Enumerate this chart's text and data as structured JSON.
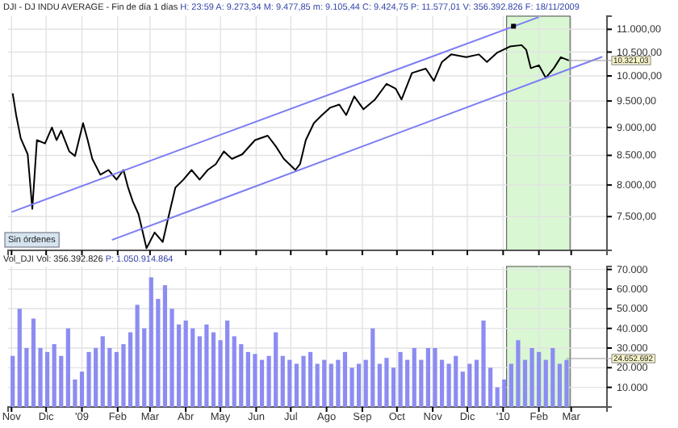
{
  "chart_data": [
    {
      "type": "line",
      "title": "DJI - DJ INDU AVERAGE - Fin de día 1 días",
      "subtitle": "H: 23:59 A: 9.273,34 M: 9.477,85 m: 9.105,44 C: 9.424,75 P: 11.577,01 V: 356.392.826 F: 18/11/2009",
      "log": true,
      "grid": true,
      "tick_labels": "y",
      "xlim": [
        "2008-10-29",
        "2010-04-01"
      ],
      "xticks": [
        {
          "value": "2008-11-01",
          "label": null
        },
        {
          "value": "2008-12-01",
          "label": null
        },
        {
          "value": "2009-01-01",
          "label": null
        },
        {
          "value": "2009-02-01",
          "label": null
        },
        {
          "value": "2009-03-01",
          "label": null
        },
        {
          "value": "2009-04-01",
          "label": null
        },
        {
          "value": "2009-05-01",
          "label": null
        },
        {
          "value": "2009-06-01",
          "label": null
        },
        {
          "value": "2009-07-01",
          "label": null
        },
        {
          "value": "2009-08-01",
          "label": null
        },
        {
          "value": "2009-09-01",
          "label": null
        },
        {
          "value": "2009-10-01",
          "label": null
        },
        {
          "value": "2009-11-01",
          "label": null
        },
        {
          "value": "2009-12-01",
          "label": null
        },
        {
          "value": "2010-01-01",
          "label": null
        },
        {
          "value": "2010-02-01",
          "label": null
        },
        {
          "value": "2010-03-01",
          "label": null
        }
      ],
      "ylim": [
        7000,
        11300
      ],
      "yticks": [
        {
          "value": 7500,
          "label": "7.500,00"
        },
        {
          "value": 8000,
          "label": "8.000,00"
        },
        {
          "value": 8500,
          "label": "8.500,00"
        },
        {
          "value": 9000,
          "label": "9.000,00"
        },
        {
          "value": 9500,
          "label": "9.500,00"
        },
        {
          "value": 10000,
          "label": "10.000,00"
        },
        {
          "value": 10500,
          "label": "10.500,00"
        },
        {
          "value": 11000,
          "label": "11.000,00"
        }
      ],
      "bands": [
        {
          "axis": "x",
          "from": "2010-01-04",
          "to": "2010-02-28",
          "color": "#d9f7d3"
        }
      ],
      "annotations": [
        {
          "text": "10.321,03",
          "x": "2010-02-27",
          "y": 10320
        },
        "Sin órdenes"
      ],
      "series": [
        {
          "type": "line",
          "color": "#000000",
          "x": [
            "2008-11-02",
            "2008-11-05",
            "2008-11-09",
            "2008-11-15",
            "2008-11-19",
            "2008-11-23",
            "2008-11-30",
            "2008-12-06",
            "2008-12-10",
            "2008-12-14",
            "2008-12-21",
            "2008-12-26",
            "2009-01-02",
            "2009-01-06",
            "2009-01-10",
            "2009-01-17",
            "2009-01-24",
            "2009-01-31",
            "2009-02-06",
            "2009-02-10",
            "2009-02-14",
            "2009-02-19",
            "2009-02-26",
            "2009-03-05",
            "2009-03-12",
            "2009-03-16",
            "2009-03-23",
            "2009-03-30",
            "2009-04-06",
            "2009-04-13",
            "2009-04-20",
            "2009-04-27",
            "2009-05-04",
            "2009-05-11",
            "2009-05-20",
            "2009-05-31",
            "2009-06-11",
            "2009-06-18",
            "2009-06-25",
            "2009-07-05",
            "2009-07-09",
            "2009-07-14",
            "2009-07-21",
            "2009-07-28",
            "2009-08-04",
            "2009-08-12",
            "2009-08-18",
            "2009-08-25",
            "2009-09-02",
            "2009-09-12",
            "2009-09-22",
            "2009-09-30",
            "2009-10-05",
            "2009-10-14",
            "2009-10-26",
            "2009-11-02",
            "2009-11-09",
            "2009-11-17",
            "2009-11-30",
            "2009-12-11",
            "2009-12-18",
            "2009-12-27",
            "2010-01-07",
            "2010-01-17",
            "2010-01-21",
            "2010-01-25",
            "2010-02-01",
            "2010-02-07",
            "2010-02-14",
            "2010-02-20",
            "2010-02-27"
          ],
          "values": [
            9650,
            9230,
            8800,
            8520,
            7620,
            8770,
            8710,
            9000,
            8770,
            8940,
            8570,
            8490,
            9080,
            8770,
            8440,
            8170,
            8250,
            8090,
            8250,
            7960,
            7740,
            7540,
            7030,
            7260,
            7120,
            7420,
            7960,
            8090,
            8250,
            8090,
            8250,
            8350,
            8570,
            8440,
            8520,
            8770,
            8850,
            8660,
            8440,
            8250,
            8350,
            8770,
            9080,
            9230,
            9370,
            9430,
            9230,
            9590,
            9340,
            9530,
            9840,
            9740,
            9530,
            10060,
            10150,
            9900,
            10290,
            10450,
            10390,
            10450,
            10290,
            10490,
            10620,
            10650,
            10550,
            10160,
            10220,
            9960,
            10160,
            10390,
            10320
          ]
        },
        {
          "type": "line",
          "color": "#7c7cf4",
          "x": [
            "2008-11-01",
            "2010-02-01"
          ],
          "values": [
            7570,
            11280
          ]
        },
        {
          "type": "line",
          "color": "#7c7cf4",
          "x": [
            "2009-01-27",
            "2010-03-28"
          ],
          "values": [
            7150,
            10400
          ]
        },
        {
          "type": "scatter",
          "color": "#000000",
          "marker": "square",
          "x": [
            "2010-01-10"
          ],
          "values": [
            11070
          ]
        }
      ]
    },
    {
      "type": "bar",
      "title": "Vol_DJI Vol: 356.392.826",
      "subtitle": "P: 1.050.914.864",
      "grid": true,
      "color": "#8c8cf2",
      "xlim": [
        "2008-10-29",
        "2010-04-01"
      ],
      "xticks": [
        {
          "value": "2008-11-01",
          "label": "Nov"
        },
        {
          "value": "2008-12-01",
          "label": "Dic"
        },
        {
          "value": "2009-01-01",
          "label": "'09"
        },
        {
          "value": "2009-02-01",
          "label": "Feb"
        },
        {
          "value": "2009-03-01",
          "label": "Mar"
        },
        {
          "value": "2009-04-01",
          "label": "Abr"
        },
        {
          "value": "2009-05-01",
          "label": "May"
        },
        {
          "value": "2009-06-01",
          "label": "Jun"
        },
        {
          "value": "2009-07-01",
          "label": "Jul"
        },
        {
          "value": "2009-08-01",
          "label": "Ago"
        },
        {
          "value": "2009-09-01",
          "label": "Sep"
        },
        {
          "value": "2009-10-01",
          "label": "Oct"
        },
        {
          "value": "2009-11-01",
          "label": "Nov"
        },
        {
          "value": "2009-12-01",
          "label": "Dic"
        },
        {
          "value": "2010-01-01",
          "label": "'10"
        },
        {
          "value": "2010-02-01",
          "label": "Feb"
        },
        {
          "value": "2010-03-01",
          "label": "Mar"
        }
      ],
      "ylim": [
        0,
        71500
      ],
      "yticks": [
        {
          "value": 10000,
          "label": "10.000"
        },
        {
          "value": 20000,
          "label": "20.000"
        },
        {
          "value": 30000,
          "label": "30.000"
        },
        {
          "value": 40000,
          "label": "40.000"
        },
        {
          "value": 50000,
          "label": "50.000"
        },
        {
          "value": 60000,
          "label": "60.000"
        },
        {
          "value": 70000,
          "label": "70.000"
        }
      ],
      "bands": [
        {
          "axis": "x",
          "from": "2010-01-04",
          "to": "2010-02-28",
          "color": "#d9f7d3"
        }
      ],
      "annotations": [
        {
          "text": "24.652.692",
          "x": "2010-02-25",
          "y": 24650
        }
      ],
      "x": [
        "2008-11-02",
        "2008-11-08",
        "2008-11-14",
        "2008-11-20",
        "2008-11-26",
        "2008-12-02",
        "2008-12-08",
        "2008-12-14",
        "2008-12-20",
        "2008-12-26",
        "2009-01-01",
        "2009-01-07",
        "2009-01-13",
        "2009-01-19",
        "2009-01-25",
        "2009-01-31",
        "2009-02-06",
        "2009-02-12",
        "2009-02-18",
        "2009-02-24",
        "2009-03-02",
        "2009-03-08",
        "2009-03-14",
        "2009-03-20",
        "2009-03-26",
        "2009-04-01",
        "2009-04-07",
        "2009-04-13",
        "2009-04-19",
        "2009-04-25",
        "2009-05-01",
        "2009-05-07",
        "2009-05-13",
        "2009-05-19",
        "2009-05-25",
        "2009-05-31",
        "2009-06-06",
        "2009-06-12",
        "2009-06-18",
        "2009-06-24",
        "2009-06-30",
        "2009-07-06",
        "2009-07-12",
        "2009-07-18",
        "2009-07-24",
        "2009-07-30",
        "2009-08-05",
        "2009-08-11",
        "2009-08-17",
        "2009-08-23",
        "2009-08-29",
        "2009-09-04",
        "2009-09-10",
        "2009-09-16",
        "2009-09-22",
        "2009-09-28",
        "2009-10-04",
        "2009-10-10",
        "2009-10-16",
        "2009-10-22",
        "2009-10-28",
        "2009-11-03",
        "2009-11-09",
        "2009-11-15",
        "2009-11-21",
        "2009-11-27",
        "2009-12-03",
        "2009-12-09",
        "2009-12-15",
        "2009-12-21",
        "2009-12-27",
        "2010-01-02",
        "2010-01-08",
        "2010-01-14",
        "2010-01-20",
        "2010-01-26",
        "2010-02-01",
        "2010-02-07",
        "2010-02-13",
        "2010-02-19",
        "2010-02-25"
      ],
      "values": [
        26000,
        50000,
        30000,
        45000,
        30000,
        28000,
        32000,
        26000,
        40000,
        14000,
        18000,
        28000,
        30000,
        36000,
        30000,
        28000,
        32000,
        38000,
        52000,
        40000,
        66000,
        55000,
        62000,
        50000,
        42000,
        44000,
        40000,
        36000,
        42000,
        38000,
        34000,
        44000,
        36000,
        32000,
        28000,
        27000,
        24000,
        26000,
        38000,
        26000,
        24000,
        22000,
        26000,
        28000,
        22000,
        24000,
        22000,
        24000,
        28000,
        20000,
        22000,
        24000,
        40000,
        22000,
        25000,
        20000,
        28000,
        24000,
        30000,
        24000,
        30000,
        30000,
        24000,
        22000,
        26000,
        18000,
        22000,
        24000,
        44000,
        20000,
        10000,
        14000,
        22000,
        34000,
        24000,
        30000,
        28000,
        24000,
        30000,
        22000,
        24000
      ]
    }
  ]
}
